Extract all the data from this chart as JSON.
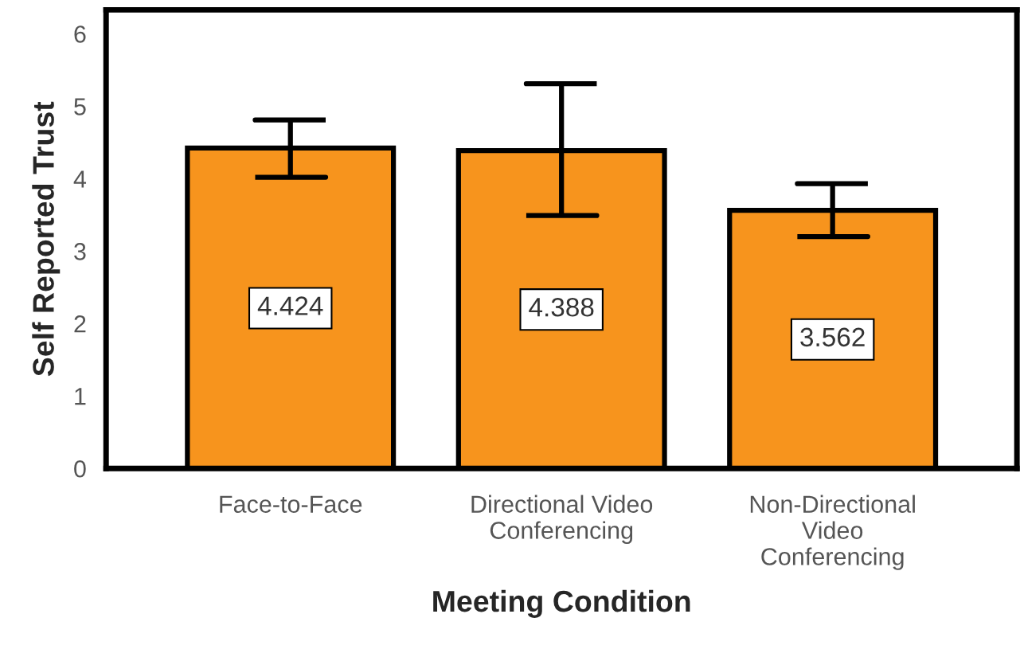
{
  "chart_data": {
    "type": "bar",
    "xlabel": "Meeting Condition",
    "ylabel": "Self Reported Trust",
    "categories": [
      "Face-to-Face",
      "Directional Video\nConferencing",
      "Non-Directional\nVideo\nConferencing"
    ],
    "values": [
      4.424,
      4.388,
      3.562
    ],
    "errors": [
      [
        4.02,
        4.81
      ],
      [
        3.49,
        5.31
      ],
      [
        3.2,
        3.93
      ]
    ],
    "color": "#f7941d",
    "ylim": [
      0,
      6.33
    ],
    "yticks": [
      0,
      1,
      2,
      3,
      4,
      5,
      6
    ],
    "data_labels": true,
    "grid": false,
    "legend": false
  }
}
